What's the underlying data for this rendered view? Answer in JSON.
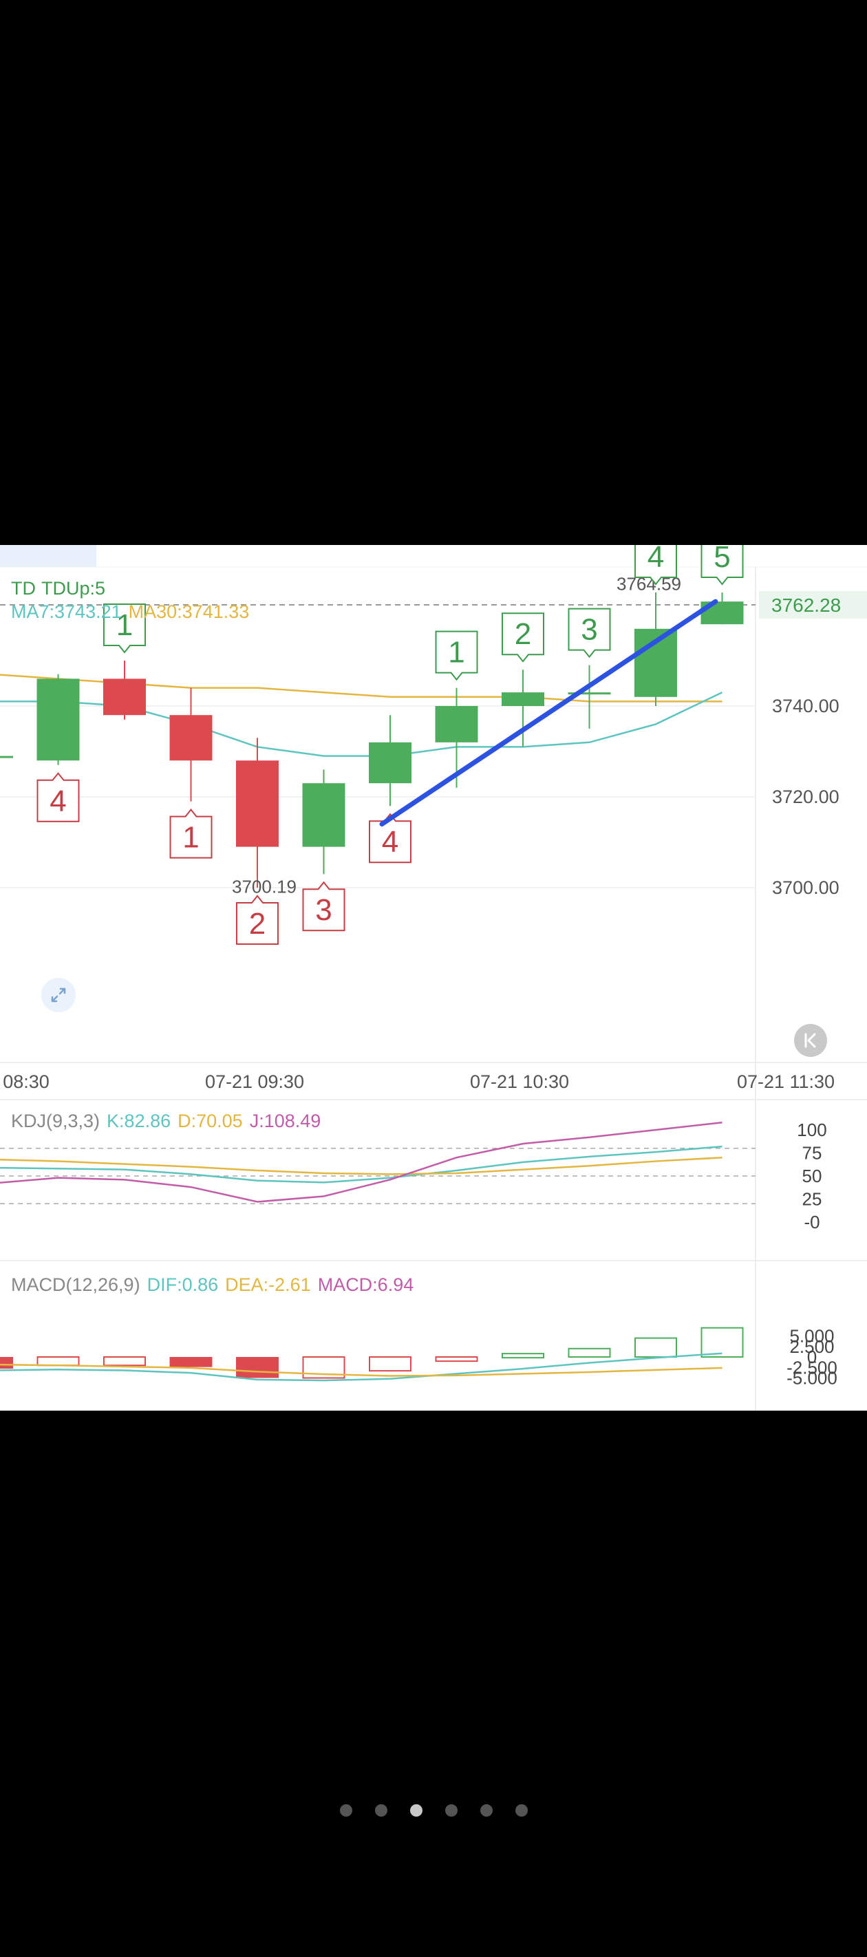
{
  "colors": {
    "up": "#4cae5d",
    "down": "#dc4a4f",
    "ma7": "#5ec4c0",
    "ma30": "#e3b640",
    "k": "#5ec4c0",
    "d": "#e3b640",
    "j": "#c25ca8",
    "trend": "#2b52e0",
    "label_up": "#3d9b4e",
    "label_down": "#c63d43"
  },
  "legend": {
    "td_title": "TD",
    "td_value": "TDUp:5",
    "ma7": "MA7:3743.21",
    "ma30": "MA30:3741.33",
    "kdj_title": "KDJ(9,3,3)",
    "k": "K:82.86",
    "d": "D:70.05",
    "j": "J:108.49",
    "macd_title": "MACD(12,26,9)",
    "dif": "DIF:0.86",
    "dea": "DEA:-2.61",
    "macd": "MACD:6.94"
  },
  "controls": {
    "expand_icon": "expand-arrows-icon",
    "back_icon": "jump-to-latest-icon"
  },
  "pager": {
    "count": 6,
    "active": 2
  },
  "chart_data": [
    {
      "type": "candlestick",
      "title": "TD",
      "x_ticks": [
        "08:30",
        "07-21 09:30",
        "07-21 10:30",
        "07-21 11:30"
      ],
      "y_ticks": [
        3700.0,
        3720.0,
        3740.0
      ],
      "ylim": [
        3687,
        3770
      ],
      "price_line": {
        "value": 3762.28,
        "label": "3762.28"
      },
      "annotations": [
        {
          "text": "3764.59",
          "value": 3764.59,
          "index": 10
        },
        {
          "text": "3700.19",
          "value": 3700.19,
          "index": 4
        }
      ],
      "grid": true,
      "candles": [
        {
          "open": 3729,
          "close": 3729,
          "high": 3729,
          "low": 3729
        },
        {
          "open": 3728,
          "close": 3746,
          "high": 3747,
          "low": 3727
        },
        {
          "open": 3746,
          "close": 3738,
          "high": 3750,
          "low": 3737
        },
        {
          "open": 3738,
          "close": 3728,
          "high": 3744,
          "low": 3719
        },
        {
          "open": 3728,
          "close": 3709,
          "high": 3733,
          "low": 3700
        },
        {
          "open": 3709,
          "close": 3723,
          "high": 3726,
          "low": 3703
        },
        {
          "open": 3723,
          "close": 3732,
          "high": 3738,
          "low": 3718
        },
        {
          "open": 3732,
          "close": 3740,
          "high": 3744,
          "low": 3722
        },
        {
          "open": 3740,
          "close": 3743,
          "high": 3748,
          "low": 3731
        },
        {
          "open": 3743,
          "close": 3743,
          "high": 3749,
          "low": 3735
        },
        {
          "open": 3742,
          "close": 3757,
          "high": 3765,
          "low": 3740
        },
        {
          "open": 3758,
          "close": 3763,
          "high": 3765,
          "low": 3758
        }
      ],
      "td_labels": [
        {
          "index": 1,
          "text": "4",
          "position": "below"
        },
        {
          "index": 2,
          "text": "1",
          "position": "above"
        },
        {
          "index": 3,
          "text": "1",
          "position": "below"
        },
        {
          "index": 4,
          "text": "2",
          "position": "below"
        },
        {
          "index": 5,
          "text": "3",
          "position": "below"
        },
        {
          "index": 6,
          "text": "4",
          "position": "below"
        },
        {
          "index": 7,
          "text": "1",
          "position": "above"
        },
        {
          "index": 8,
          "text": "2",
          "position": "above"
        },
        {
          "index": 9,
          "text": "3",
          "position": "above"
        },
        {
          "index": 10,
          "text": "4",
          "position": "above"
        },
        {
          "index": 11,
          "text": "5",
          "position": "above"
        }
      ],
      "ma7": [
        3741,
        3741,
        3740,
        3736,
        3731,
        3729,
        3729,
        3731,
        3731,
        3732,
        3736,
        3743
      ],
      "ma30": [
        3747,
        3746,
        3745,
        3744,
        3744,
        3743,
        3742,
        3742,
        3742,
        3741,
        3741,
        3741
      ],
      "trend_line": {
        "from": {
          "index": 6,
          "value": 3714
        },
        "to": {
          "index": 10.9,
          "value": 3763
        }
      }
    },
    {
      "type": "line",
      "title": "KDJ(9,3,3)",
      "y_ticks": [
        "100",
        "75",
        "50",
        "25",
        "-0"
      ],
      "ylim": [
        -5,
        110
      ],
      "reference_lines": [
        80,
        50,
        20
      ],
      "series": [
        {
          "name": "K",
          "values": [
            59,
            58,
            57,
            52,
            45,
            43,
            48,
            56,
            65,
            71,
            76,
            82
          ]
        },
        {
          "name": "D",
          "values": [
            68,
            66,
            63,
            60,
            56,
            53,
            52,
            53,
            57,
            61,
            66,
            70
          ]
        },
        {
          "name": "J",
          "values": [
            42,
            48,
            46,
            38,
            22,
            28,
            46,
            70,
            85,
            92,
            100,
            108
          ]
        }
      ]
    },
    {
      "type": "bar",
      "title": "MACD(12,26,9)",
      "y_ticks": [
        "5.000",
        "2.500",
        "0",
        "-2.500",
        "-5.000"
      ],
      "ylim": [
        -5.3,
        7.5
      ],
      "histogram": [
        -2.8,
        -2.0,
        -2.0,
        -2.4,
        -5.0,
        -5.0,
        -3.3,
        -1.0,
        0.8,
        2.0,
        4.5,
        6.94
      ],
      "series": [
        {
          "name": "DIF",
          "values": [
            -3.2,
            -3.0,
            -3.2,
            -3.8,
            -5.4,
            -5.6,
            -5.2,
            -4.0,
            -2.8,
            -1.4,
            -0.2,
            0.86
          ]
        },
        {
          "name": "DEA",
          "values": [
            -1.8,
            -2.0,
            -2.3,
            -2.6,
            -3.5,
            -4.1,
            -4.5,
            -4.4,
            -4.0,
            -3.6,
            -3.1,
            -2.61
          ]
        }
      ]
    }
  ]
}
